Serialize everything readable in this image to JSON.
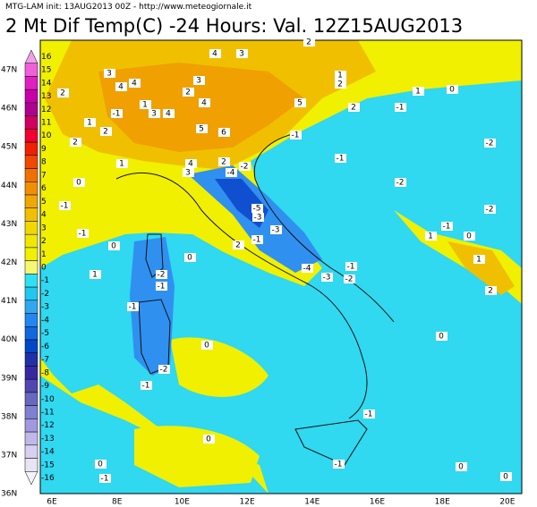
{
  "header": {
    "source": "MTG-LAM init: 13AUG2013 00Z - http://www.meteogiornale.it",
    "title": "2 Mt Dif Temp(C) -24 Hours: Val. 12Z15AUG2013"
  },
  "colorbar": {
    "levels": [
      {
        "label": "16",
        "color": "#f0a0e8"
      },
      {
        "label": "15",
        "color": "#f060d8"
      },
      {
        "label": "14",
        "color": "#e020c0"
      },
      {
        "label": "13",
        "color": "#c800a8"
      },
      {
        "label": "12",
        "color": "#b00090"
      },
      {
        "label": "11",
        "color": "#d00060"
      },
      {
        "label": "10",
        "color": "#f00030"
      },
      {
        "label": "9",
        "color": "#f02000"
      },
      {
        "label": "8",
        "color": "#f04800"
      },
      {
        "label": "7",
        "color": "#f07000"
      },
      {
        "label": "6",
        "color": "#f09000"
      },
      {
        "label": "5",
        "color": "#f0a800"
      },
      {
        "label": "4",
        "color": "#f0c000"
      },
      {
        "label": "3",
        "color": "#f0d800"
      },
      {
        "label": "2",
        "color": "#f0e800"
      },
      {
        "label": "1",
        "color": "#f0f000"
      },
      {
        "label": "0",
        "color": "#f8f870"
      },
      {
        "label": "-1",
        "color": "#30e0f0"
      },
      {
        "label": "-2",
        "color": "#20c8f0"
      },
      {
        "label": "-3",
        "color": "#30a8f0"
      },
      {
        "label": "-4",
        "color": "#2088f0"
      },
      {
        "label": "-5",
        "color": "#1068e0"
      },
      {
        "label": "-6",
        "color": "#0048c8"
      },
      {
        "label": "-7",
        "color": "#2030a8"
      },
      {
        "label": "-8",
        "color": "#3828a0"
      },
      {
        "label": "-9",
        "color": "#5048b0"
      },
      {
        "label": "-10",
        "color": "#6868c0"
      },
      {
        "label": "-11",
        "color": "#8080d0"
      },
      {
        "label": "-12",
        "color": "#a098e0"
      },
      {
        "label": "-13",
        "color": "#c0b8e8"
      },
      {
        "label": "-14",
        "color": "#d8d0f0"
      },
      {
        "label": "-15",
        "color": "#e8e4f4"
      },
      {
        "label": "-16",
        "color": "#f4f4f8"
      }
    ]
  },
  "map": {
    "latitude_labels": [
      "47N",
      "46N",
      "45N",
      "44N",
      "43N",
      "42N",
      "41N",
      "40N",
      "39N",
      "38N",
      "37N",
      "36N"
    ],
    "longitude_labels": [
      "6E",
      "8E",
      "10E",
      "12E",
      "14E",
      "16E",
      "18E",
      "20E"
    ],
    "contour_labels": [
      "4",
      "3",
      "2",
      "3",
      "4",
      "4",
      "3",
      "2",
      "1",
      "2",
      "1",
      "0",
      "2",
      "-1",
      "1",
      "3",
      "4",
      "4",
      "5",
      "2",
      "-1",
      "1",
      "2",
      "5",
      "6",
      "-1",
      "-2",
      "2",
      "-1",
      "1",
      "4",
      "2",
      "-2",
      "-4",
      "3",
      "0",
      "-2",
      "-1",
      "-5",
      "-3",
      "-2",
      "-1",
      "0",
      "-1",
      "-3",
      "-1",
      "1",
      "2",
      "0",
      "0",
      "1",
      "2",
      "-2",
      "1",
      "-4",
      "-1",
      "-3",
      "-2",
      "-1",
      "-1",
      "0",
      "0",
      "-2",
      "-1",
      "-1",
      "0",
      "0",
      "-1",
      "0",
      "-1",
      "0"
    ]
  }
}
